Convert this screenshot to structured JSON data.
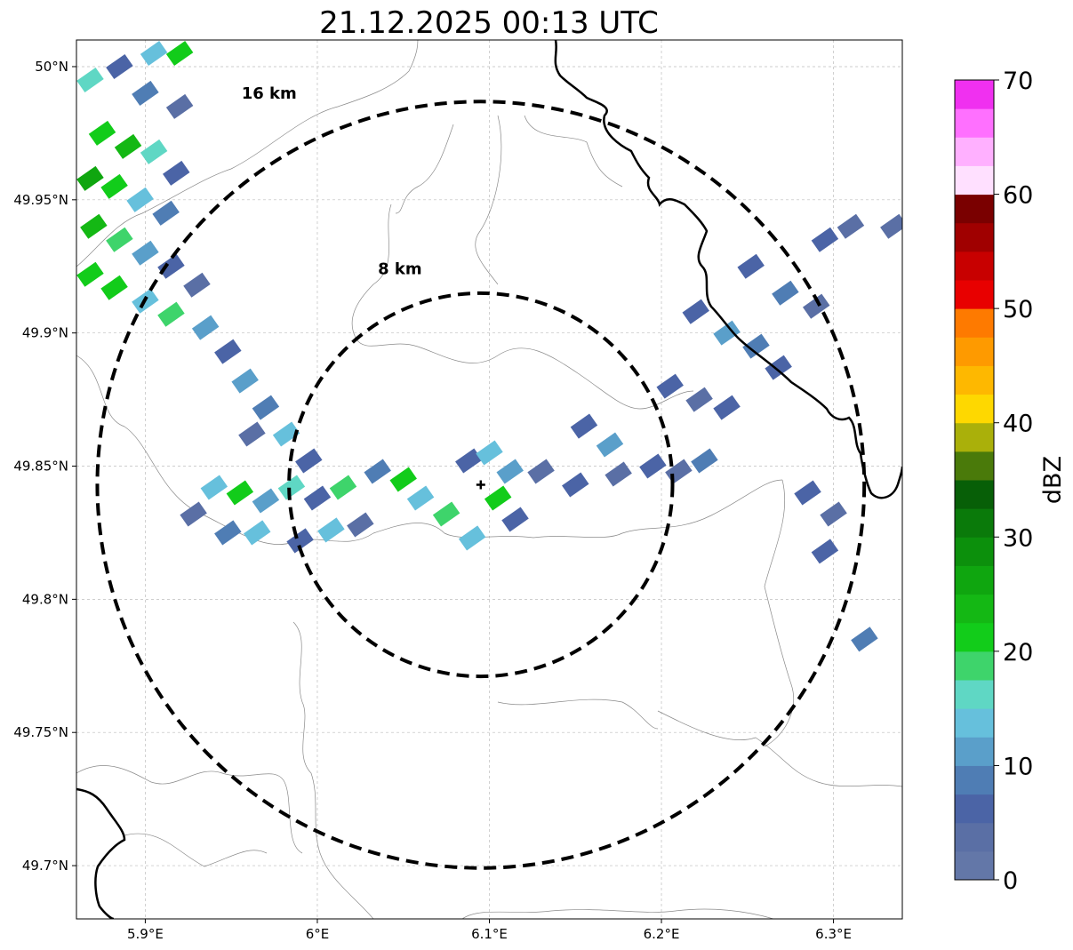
{
  "title": "21.12.2025 00:13 UTC",
  "map": {
    "lon_range": [
      5.86,
      6.34
    ],
    "lat_range": [
      49.68,
      50.01
    ],
    "x_ticks": [
      {
        "value": 5.9,
        "label": "5.9°E"
      },
      {
        "value": 6.0,
        "label": "6°E"
      },
      {
        "value": 6.1,
        "label": "6.1°E"
      },
      {
        "value": 6.2,
        "label": "6.2°E"
      },
      {
        "value": 6.3,
        "label": "6.3°E"
      }
    ],
    "y_ticks": [
      {
        "value": 50.0,
        "label": "50°N"
      },
      {
        "value": 49.95,
        "label": "49.95°N"
      },
      {
        "value": 49.9,
        "label": "49.9°N"
      },
      {
        "value": 49.85,
        "label": "49.85°N"
      },
      {
        "value": 49.8,
        "label": "49.8°N"
      },
      {
        "value": 49.75,
        "label": "49.75°N"
      },
      {
        "value": 49.7,
        "label": "49.7°N"
      }
    ],
    "grid": true,
    "radar_site": {
      "lon": 6.095,
      "lat": 49.843
    },
    "range_rings": [
      {
        "radius_km": 8,
        "label": "8 km",
        "label_lon": 6.048,
        "label_lat": 49.922
      },
      {
        "radius_km": 16,
        "label": "16 km",
        "label_lon": 5.972,
        "label_lat": 49.988
      }
    ],
    "echo_cells": [
      {
        "lon": 5.868,
        "lat": 49.995,
        "dbz": 16
      },
      {
        "lon": 5.885,
        "lat": 50.0,
        "dbz": 6
      },
      {
        "lon": 5.905,
        "lat": 50.005,
        "dbz": 14
      },
      {
        "lon": 5.92,
        "lat": 50.005,
        "dbz": 20
      },
      {
        "lon": 5.9,
        "lat": 49.99,
        "dbz": 8
      },
      {
        "lon": 5.92,
        "lat": 49.985,
        "dbz": 4
      },
      {
        "lon": 5.875,
        "lat": 49.975,
        "dbz": 22
      },
      {
        "lon": 5.89,
        "lat": 49.97,
        "dbz": 24
      },
      {
        "lon": 5.905,
        "lat": 49.968,
        "dbz": 16
      },
      {
        "lon": 5.918,
        "lat": 49.96,
        "dbz": 6
      },
      {
        "lon": 5.868,
        "lat": 49.958,
        "dbz": 26
      },
      {
        "lon": 5.882,
        "lat": 49.955,
        "dbz": 22
      },
      {
        "lon": 5.897,
        "lat": 49.95,
        "dbz": 14
      },
      {
        "lon": 5.912,
        "lat": 49.945,
        "dbz": 8
      },
      {
        "lon": 5.87,
        "lat": 49.94,
        "dbz": 24
      },
      {
        "lon": 5.885,
        "lat": 49.935,
        "dbz": 18
      },
      {
        "lon": 5.9,
        "lat": 49.93,
        "dbz": 12
      },
      {
        "lon": 5.915,
        "lat": 49.925,
        "dbz": 6
      },
      {
        "lon": 5.868,
        "lat": 49.922,
        "dbz": 22
      },
      {
        "lon": 5.882,
        "lat": 49.917,
        "dbz": 20
      },
      {
        "lon": 5.9,
        "lat": 49.912,
        "dbz": 14
      },
      {
        "lon": 5.915,
        "lat": 49.907,
        "dbz": 18
      },
      {
        "lon": 5.93,
        "lat": 49.918,
        "dbz": 4
      },
      {
        "lon": 5.935,
        "lat": 49.902,
        "dbz": 12
      },
      {
        "lon": 5.948,
        "lat": 49.893,
        "dbz": 6
      },
      {
        "lon": 5.958,
        "lat": 49.882,
        "dbz": 10
      },
      {
        "lon": 5.97,
        "lat": 49.872,
        "dbz": 8
      },
      {
        "lon": 5.962,
        "lat": 49.862,
        "dbz": 4
      },
      {
        "lon": 5.982,
        "lat": 49.862,
        "dbz": 14
      },
      {
        "lon": 5.995,
        "lat": 49.852,
        "dbz": 6
      },
      {
        "lon": 5.94,
        "lat": 49.842,
        "dbz": 14
      },
      {
        "lon": 5.955,
        "lat": 49.84,
        "dbz": 20
      },
      {
        "lon": 5.97,
        "lat": 49.837,
        "dbz": 12
      },
      {
        "lon": 5.928,
        "lat": 49.832,
        "dbz": 4
      },
      {
        "lon": 5.948,
        "lat": 49.825,
        "dbz": 8
      },
      {
        "lon": 5.965,
        "lat": 49.825,
        "dbz": 14
      },
      {
        "lon": 5.985,
        "lat": 49.842,
        "dbz": 16
      },
      {
        "lon": 6.0,
        "lat": 49.838,
        "dbz": 6
      },
      {
        "lon": 6.015,
        "lat": 49.842,
        "dbz": 18
      },
      {
        "lon": 6.008,
        "lat": 49.826,
        "dbz": 14
      },
      {
        "lon": 6.025,
        "lat": 49.828,
        "dbz": 4
      },
      {
        "lon": 5.99,
        "lat": 49.822,
        "dbz": 6
      },
      {
        "lon": 6.035,
        "lat": 49.848,
        "dbz": 8
      },
      {
        "lon": 6.05,
        "lat": 49.845,
        "dbz": 20
      },
      {
        "lon": 6.06,
        "lat": 49.838,
        "dbz": 14
      },
      {
        "lon": 6.075,
        "lat": 49.832,
        "dbz": 18
      },
      {
        "lon": 6.09,
        "lat": 49.823,
        "dbz": 14
      },
      {
        "lon": 6.088,
        "lat": 49.852,
        "dbz": 6
      },
      {
        "lon": 6.1,
        "lat": 49.855,
        "dbz": 14
      },
      {
        "lon": 6.112,
        "lat": 49.848,
        "dbz": 10
      },
      {
        "lon": 6.105,
        "lat": 49.838,
        "dbz": 20
      },
      {
        "lon": 6.115,
        "lat": 49.83,
        "dbz": 6
      },
      {
        "lon": 6.13,
        "lat": 49.848,
        "dbz": 4
      },
      {
        "lon": 6.15,
        "lat": 49.843,
        "dbz": 6
      },
      {
        "lon": 6.155,
        "lat": 49.865,
        "dbz": 6
      },
      {
        "lon": 6.17,
        "lat": 49.858,
        "dbz": 10
      },
      {
        "lon": 6.175,
        "lat": 49.847,
        "dbz": 4
      },
      {
        "lon": 6.195,
        "lat": 49.85,
        "dbz": 6
      },
      {
        "lon": 6.21,
        "lat": 49.848,
        "dbz": 4
      },
      {
        "lon": 6.225,
        "lat": 49.852,
        "dbz": 8
      },
      {
        "lon": 6.205,
        "lat": 49.88,
        "dbz": 6
      },
      {
        "lon": 6.222,
        "lat": 49.875,
        "dbz": 4
      },
      {
        "lon": 6.238,
        "lat": 49.872,
        "dbz": 6
      },
      {
        "lon": 6.22,
        "lat": 49.908,
        "dbz": 6
      },
      {
        "lon": 6.238,
        "lat": 49.9,
        "dbz": 10
      },
      {
        "lon": 6.255,
        "lat": 49.895,
        "dbz": 8
      },
      {
        "lon": 6.268,
        "lat": 49.887,
        "dbz": 6
      },
      {
        "lon": 6.252,
        "lat": 49.925,
        "dbz": 6
      },
      {
        "lon": 6.272,
        "lat": 49.915,
        "dbz": 8
      },
      {
        "lon": 6.29,
        "lat": 49.91,
        "dbz": 4
      },
      {
        "lon": 6.295,
        "lat": 49.935,
        "dbz": 6
      },
      {
        "lon": 6.31,
        "lat": 49.94,
        "dbz": 4
      },
      {
        "lon": 6.335,
        "lat": 49.94,
        "dbz": 4
      },
      {
        "lon": 6.285,
        "lat": 49.84,
        "dbz": 6
      },
      {
        "lon": 6.3,
        "lat": 49.832,
        "dbz": 4
      },
      {
        "lon": 6.295,
        "lat": 49.818,
        "dbz": 6
      },
      {
        "lon": 6.318,
        "lat": 49.785,
        "dbz": 8
      }
    ]
  },
  "colorbar": {
    "label": "dBZ",
    "min": 0,
    "max": 70,
    "ticks": [
      "0",
      "10",
      "20",
      "30",
      "40",
      "50",
      "60",
      "70"
    ],
    "colors": [
      "#6377a8",
      "#5a6fa5",
      "#4b64a6",
      "#4f7db4",
      "#5a9fca",
      "#66c0dc",
      "#5fd7c4",
      "#3ed46b",
      "#12cc1a",
      "#14b814",
      "#0fa60f",
      "#0c900c",
      "#0a7a0a",
      "#075f07",
      "#4a7a0a",
      "#aab00a",
      "#fed800",
      "#feb800",
      "#fe9a00",
      "#fe7a00",
      "#e80000",
      "#c80000",
      "#a00000",
      "#7a0000",
      "#ffe0ff",
      "#ffb0ff",
      "#ff70ff",
      "#f030f0"
    ]
  },
  "styles": {
    "ring_color": "#000000",
    "border_color": "#000000",
    "river_color": "#888888",
    "grid_color": "#bdbdbd"
  }
}
